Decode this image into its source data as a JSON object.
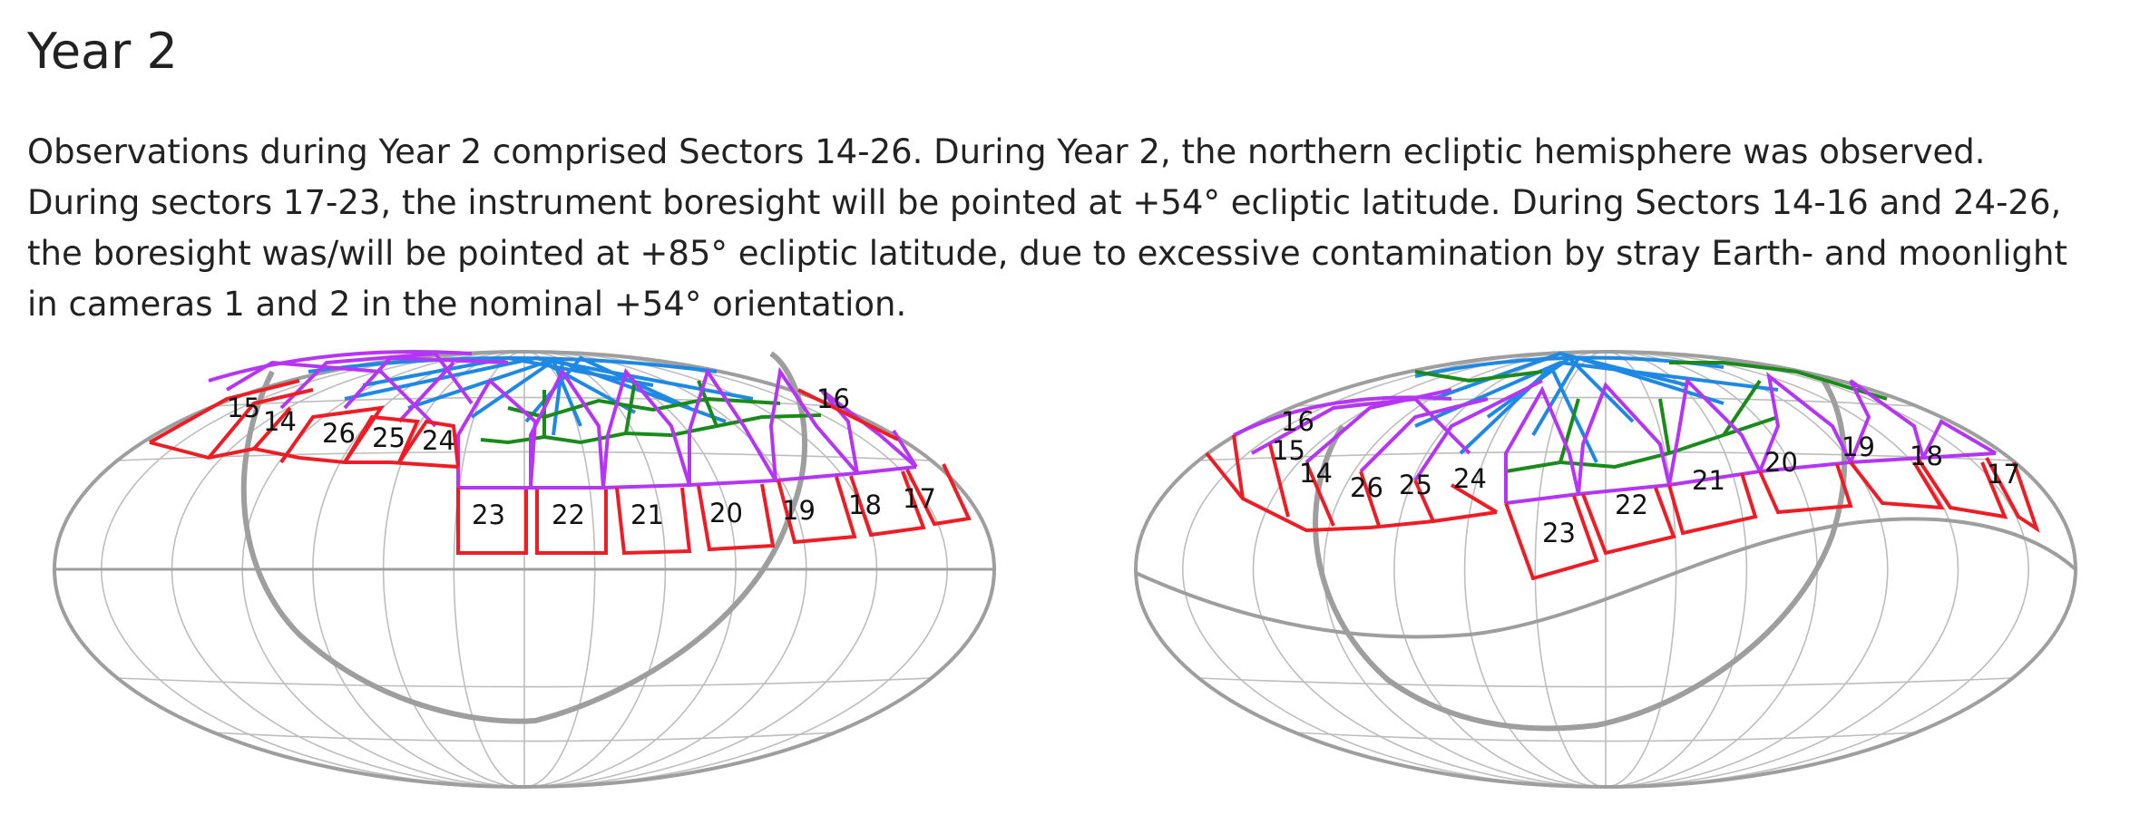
{
  "heading": "Year 2",
  "paragraph": "Observations during Year 2 comprised Sectors 14-26. During Year 2, the northern ecliptic hemisphere was observed. During sectors 17-23, the instrument boresight will be pointed at +54° ecliptic latitude. During Sectors 14-16 and 24-26, the boresight was/will be pointed at +85° ecliptic latitude, due to excessive contamination by stray Earth- and moonlight in cameras 1 and 2 in the nominal +54° orientation.",
  "colors": {
    "camera1": "#ee1c24",
    "camera2": "#b535f4",
    "camera3": "#1a8a1a",
    "camera4": "#1e88e5",
    "graticule": "#bdbdbd",
    "boundary": "#9e9e9e"
  },
  "maps": [
    {
      "view": "left",
      "sector_labels": [
        "15",
        "14",
        "26",
        "25",
        "24",
        "16",
        "23",
        "22",
        "21",
        "20",
        "19",
        "18",
        "17"
      ]
    },
    {
      "view": "right",
      "sector_labels": [
        "16",
        "15",
        "14",
        "26",
        "25",
        "24",
        "23",
        "22",
        "21",
        "20",
        "19",
        "18",
        "17"
      ]
    }
  ]
}
